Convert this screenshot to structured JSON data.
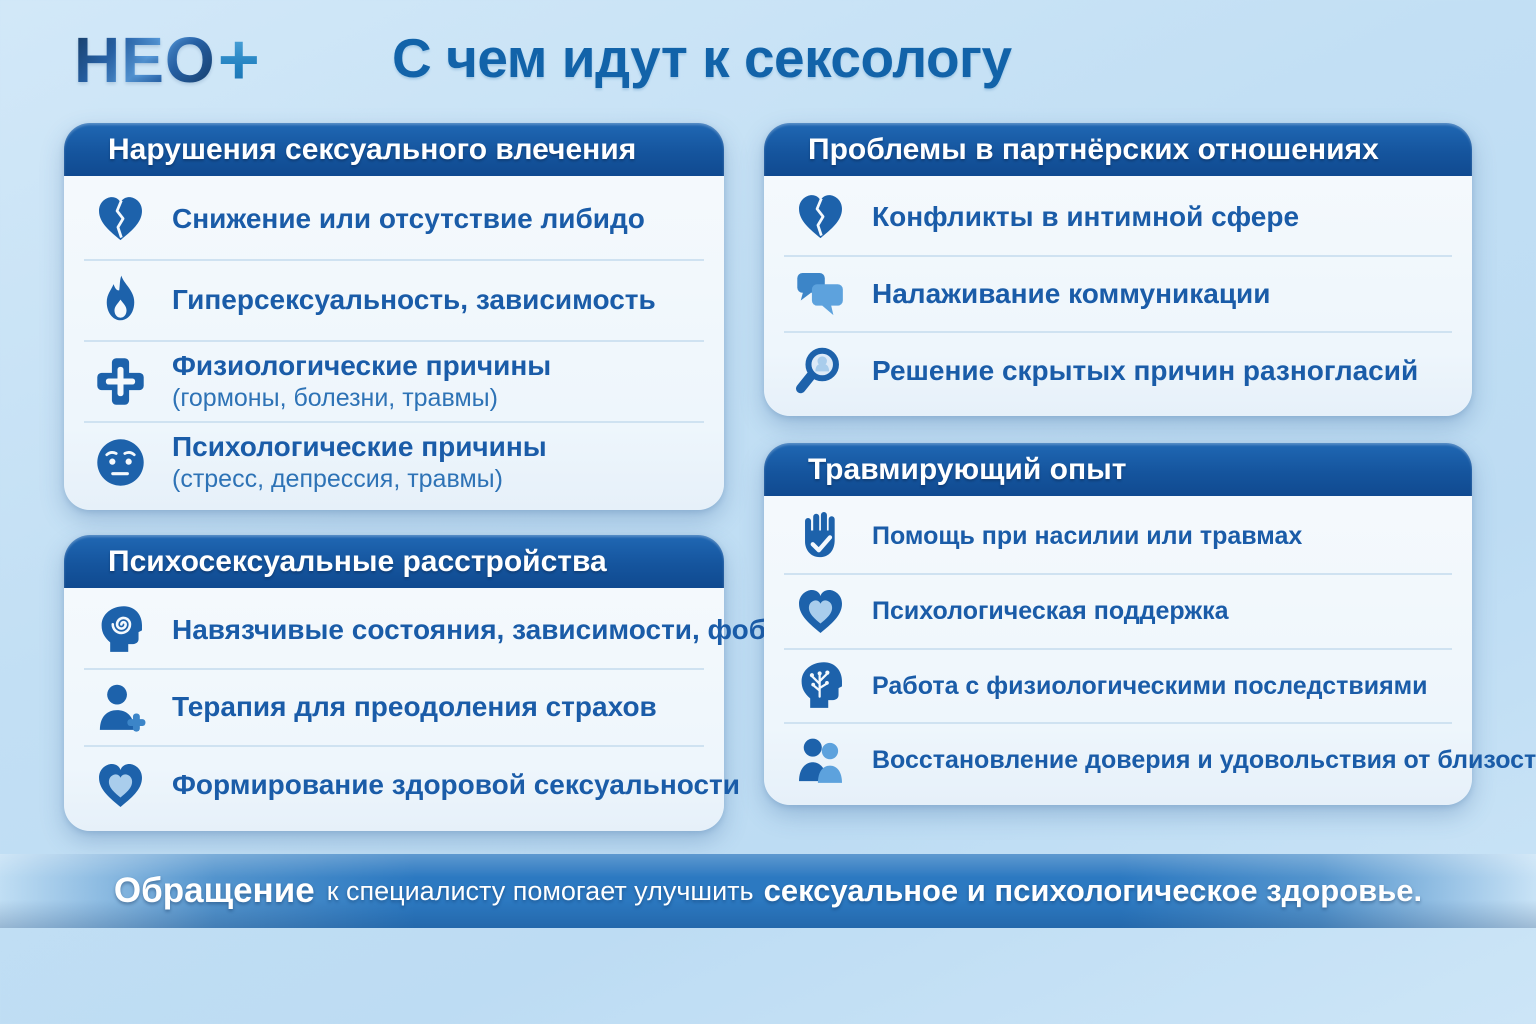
{
  "colors": {
    "background": "#c2dff4",
    "header_blue": "#15559e",
    "item_text_blue": "#1a5ca8",
    "icon_blue": "#1d62ab",
    "icon_light_blue": "#5da2dd",
    "banner_blue": "#2c79c1"
  },
  "logo": {
    "text": "НЕО",
    "plus": "+"
  },
  "title": "С чем идут к сексологу",
  "cards": [
    {
      "id": "desire-disorders",
      "title": "Нарушения сексуального влечения",
      "items": [
        {
          "icon": "broken-heart-icon",
          "text": "Снижение или отсутствие либидо"
        },
        {
          "icon": "flame-icon",
          "text": "Гиперсексуальность, зависимость"
        },
        {
          "icon": "medical-cross-icon",
          "text": "Физиологические причины",
          "subtext": "(гормоны, болезни, травмы)"
        },
        {
          "icon": "sad-face-icon",
          "text": "Психологические причины",
          "subtext": "(стресс, депрессия, травмы)"
        }
      ]
    },
    {
      "id": "partner-problems",
      "title": "Проблемы в партнёрских отношениях",
      "items": [
        {
          "icon": "broken-heart-icon",
          "text": "Конфликты в интимной сфере"
        },
        {
          "icon": "speech-bubbles-icon",
          "text": "Налаживание коммуникации"
        },
        {
          "icon": "magnifier-head-icon",
          "text": "Решение скрытых причин разногласий"
        }
      ]
    },
    {
      "id": "psychosexual-disorders",
      "title": "Психосексуальные расстройства",
      "items": [
        {
          "icon": "head-spiral-icon",
          "text": "Навязчивые состояния, зависимости, фобии"
        },
        {
          "icon": "person-plus-icon",
          "text": "Терапия для преодоления страхов"
        },
        {
          "icon": "heart-in-heart-icon",
          "text": "Формирование здоровой сексуальности"
        }
      ]
    },
    {
      "id": "traumatic-experience",
      "title": "Травмирующий опыт",
      "items": [
        {
          "icon": "hand-check-icon",
          "text": "Помощь при насилии или травмах"
        },
        {
          "icon": "heart-in-heart-icon",
          "text": "Психологическая поддержка"
        },
        {
          "icon": "head-tree-icon",
          "text": "Работа с физиологическими последствиями"
        },
        {
          "icon": "couple-icon",
          "text": "Восстановление доверия и удовольствия от близости"
        }
      ]
    }
  ],
  "banner": {
    "lead": "Обращение",
    "mid": "к специалисту помогает улучшить",
    "tail": "сексуальное и психологическое здоровье."
  }
}
